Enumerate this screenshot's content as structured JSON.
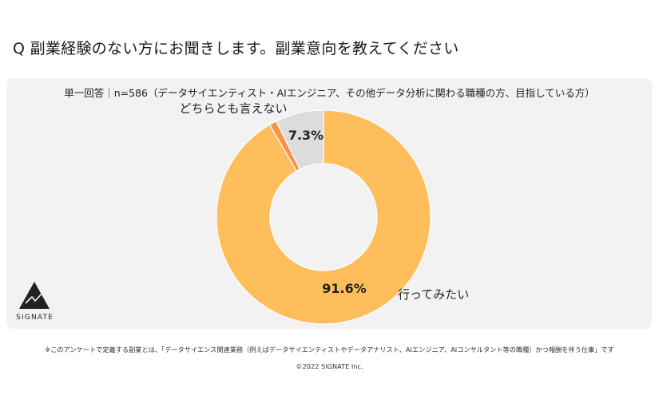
{
  "question": "Q 副業経験のない方にお聞きします。副業意向を教えてください",
  "chart_data": {
    "type": "pie",
    "subtitle": "単一回答｜n=586（データサイエンティスト・AIエンジニア、その他データ分析に関わる職種の方、目指している方）",
    "slices": [
      {
        "label": "行ってみたい",
        "value": 91.6,
        "value_label": "91.6%",
        "color": "#FFBE5C"
      },
      {
        "label": "",
        "value": 1.1,
        "value_label": "",
        "color": "#F7934A"
      },
      {
        "label": "どちらとも言えない",
        "value": 7.3,
        "value_label": "7.3%",
        "color": "#DCDCDC"
      }
    ],
    "donut": true
  },
  "logo": {
    "name": "SIGNATE"
  },
  "footnote": "※このアンケートで定義する副業とは、「データサイエンス関連業務（例えばデータサイエンティストやデータアナリスト、AIエンジニア、AIコンサルタント等の職種）かつ報酬を伴う仕事」です",
  "copyright": "©2022 SIGNATE Inc."
}
